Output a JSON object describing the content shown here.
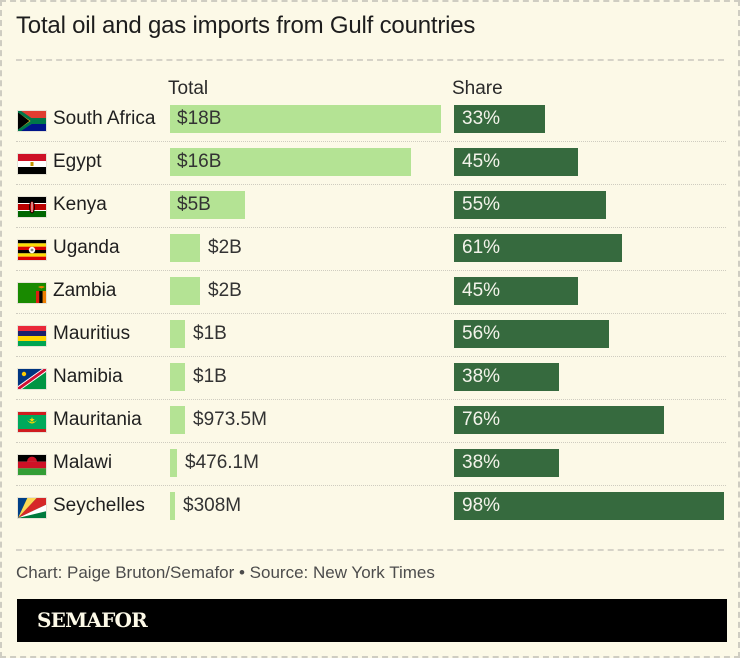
{
  "title": "Total oil and gas imports from Gulf countries",
  "columns": {
    "total": "Total",
    "share": "Share"
  },
  "colors": {
    "background": "#fcf9e7",
    "total_bar": "#b4e394",
    "share_bar": "#366a3e",
    "brand_bar": "#000000"
  },
  "credit": "Chart: Paige Bruton/Semafor • Source: New York Times",
  "brand": "SEMAFOR",
  "rows": [
    {
      "country": "South Africa",
      "flag": "south-africa",
      "total_label": "$18B",
      "total_value": 18000,
      "share_label": "33%",
      "share": 33
    },
    {
      "country": "Egypt",
      "flag": "egypt",
      "total_label": "$16B",
      "total_value": 16000,
      "share_label": "45%",
      "share": 45
    },
    {
      "country": "Kenya",
      "flag": "kenya",
      "total_label": "$5B",
      "total_value": 5000,
      "share_label": "55%",
      "share": 55
    },
    {
      "country": "Uganda",
      "flag": "uganda",
      "total_label": "$2B",
      "total_value": 2000,
      "share_label": "61%",
      "share": 61
    },
    {
      "country": "Zambia",
      "flag": "zambia",
      "total_label": "$2B",
      "total_value": 2000,
      "share_label": "45%",
      "share": 45
    },
    {
      "country": "Mauritius",
      "flag": "mauritius",
      "total_label": "$1B",
      "total_value": 1000,
      "share_label": "56%",
      "share": 56
    },
    {
      "country": "Namibia",
      "flag": "namibia",
      "total_label": "$1B",
      "total_value": 1000,
      "share_label": "38%",
      "share": 38
    },
    {
      "country": "Mauritania",
      "flag": "mauritania",
      "total_label": "$973.5M",
      "total_value": 973.5,
      "share_label": "76%",
      "share": 76
    },
    {
      "country": "Malawi",
      "flag": "malawi",
      "total_label": "$476.1M",
      "total_value": 476.1,
      "share_label": "38%",
      "share": 38
    },
    {
      "country": "Seychelles",
      "flag": "seychelles",
      "total_label": "$308M",
      "total_value": 308,
      "share_label": "98%",
      "share": 98
    }
  ],
  "chart_data": {
    "type": "bar",
    "title": "Total oil and gas imports from Gulf countries",
    "categories": [
      "South Africa",
      "Egypt",
      "Kenya",
      "Uganda",
      "Zambia",
      "Mauritius",
      "Namibia",
      "Mauritania",
      "Malawi",
      "Seychelles"
    ],
    "series": [
      {
        "name": "Total (USD millions)",
        "values": [
          18000,
          16000,
          5000,
          2000,
          2000,
          1000,
          1000,
          973.5,
          476.1,
          308
        ],
        "labels": [
          "$18B",
          "$16B",
          "$5B",
          "$2B",
          "$2B",
          "$1B",
          "$1B",
          "$973.5M",
          "$476.1M",
          "$308M"
        ]
      },
      {
        "name": "Share (%)",
        "values": [
          33,
          45,
          55,
          61,
          45,
          56,
          38,
          76,
          38,
          98
        ]
      }
    ],
    "orientation": "horizontal",
    "xlabel": "",
    "ylabel": "",
    "grid": false,
    "legend": "column headers: Total, Share",
    "source": "Chart: Paige Bruton/Semafor • Source: New York Times"
  }
}
